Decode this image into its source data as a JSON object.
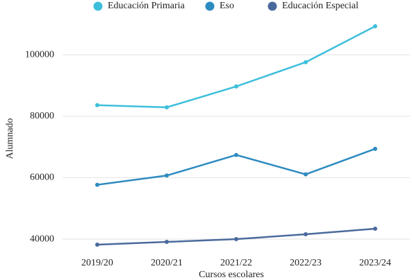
{
  "chart_data": {
    "type": "line",
    "x_label": "Cursos escolares",
    "y_label": "Alumnado",
    "categories": [
      "2019/20",
      "2020/21",
      "2021/22",
      "2022/23",
      "2023/24"
    ],
    "series": [
      {
        "name": "Educación Primaria",
        "color": "#3dbfdc",
        "values": [
          83600,
          82900,
          89700,
          97600,
          109300
        ]
      },
      {
        "name": "Eso",
        "color": "#2e8bc0",
        "values": [
          57700,
          60700,
          67400,
          61100,
          69400
        ]
      },
      {
        "name": "Educación Especial",
        "color": "#4a6a9c",
        "values": [
          38200,
          39100,
          40000,
          41600,
          43400
        ]
      }
    ],
    "ylim": [
      35500,
      112200
    ],
    "yticks": [
      40000,
      60000,
      80000,
      100000
    ],
    "grid": true
  }
}
